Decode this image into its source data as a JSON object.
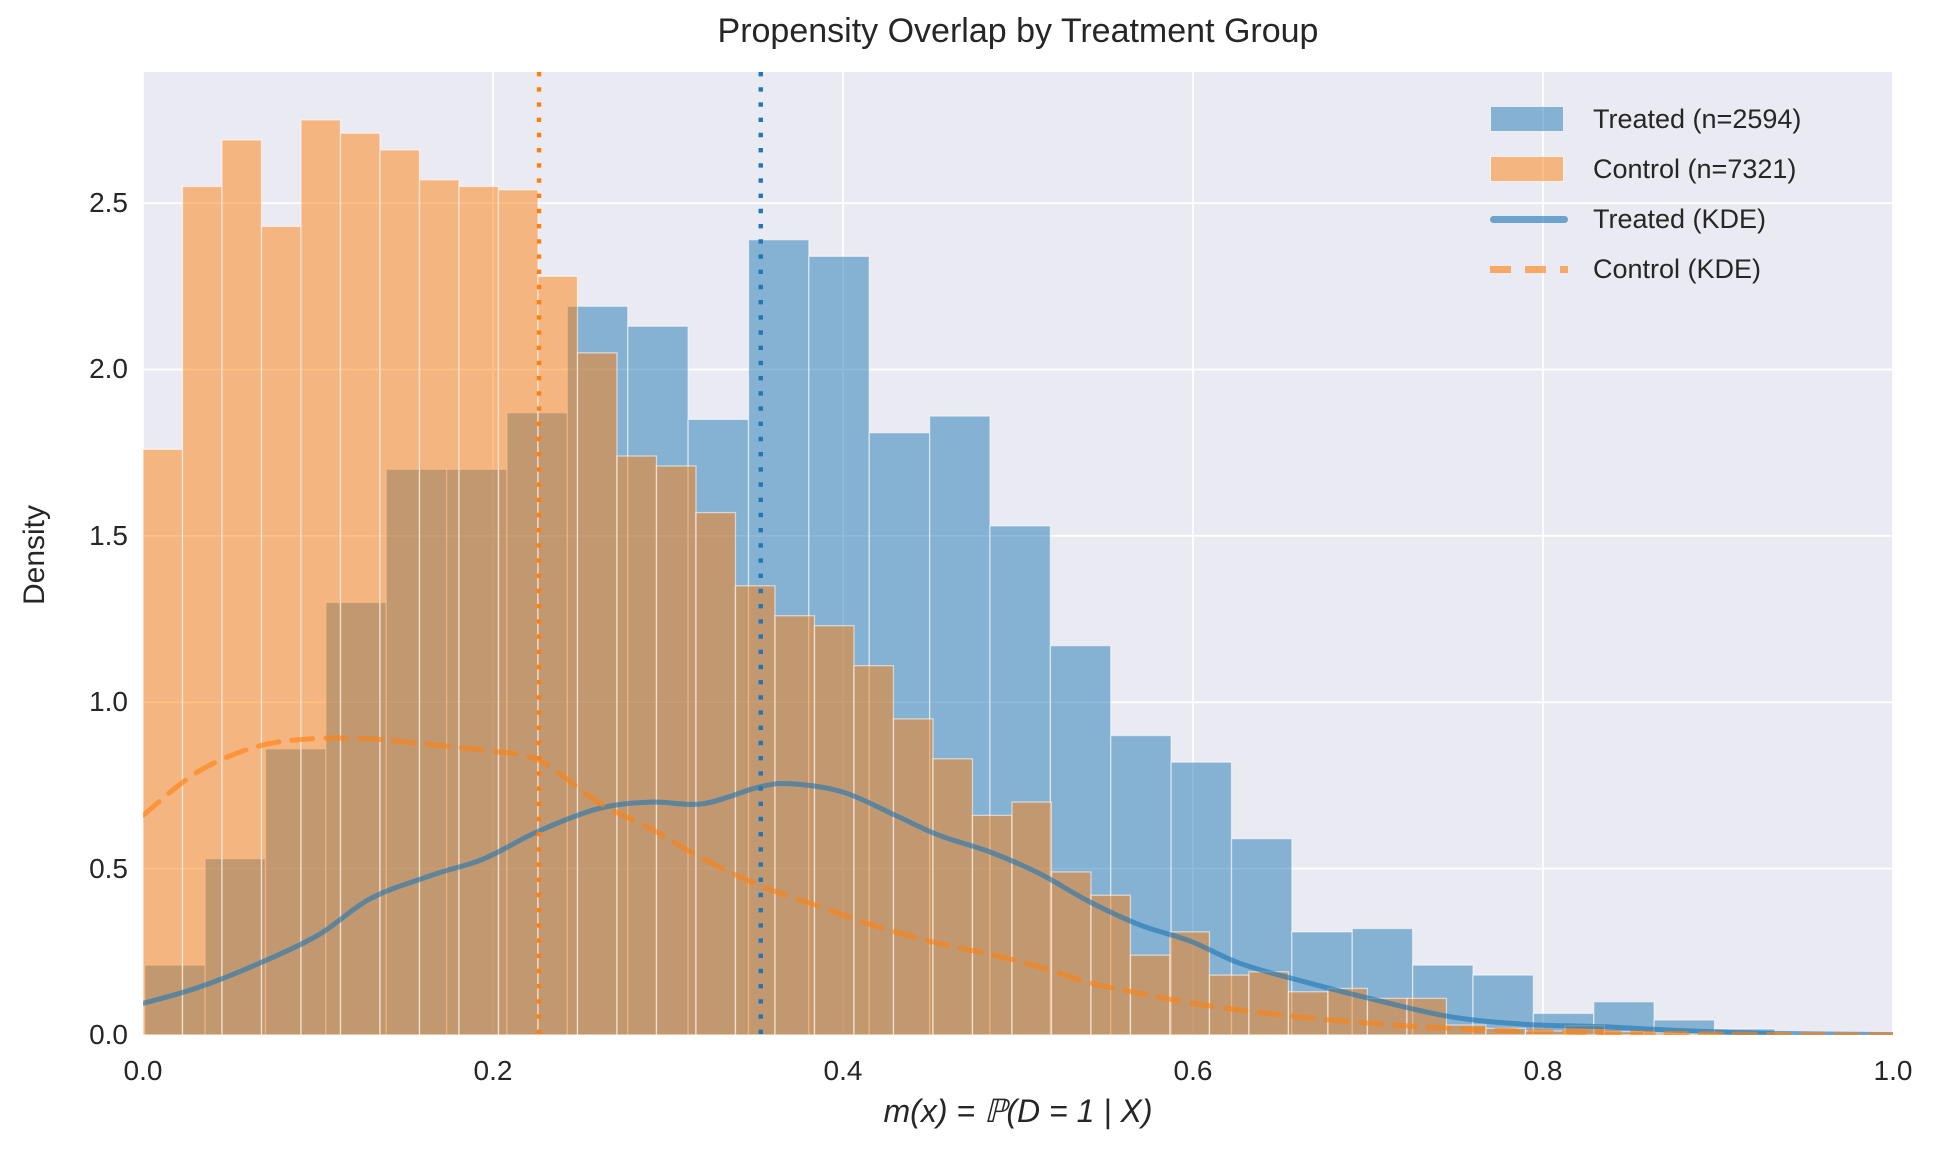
{
  "title": "Propensity Overlap by Treatment Group",
  "xlabel": "m(x) = ℙ(D = 1 | X)",
  "ylabel": "Density",
  "legend": {
    "items": [
      {
        "label": "Treated (n=2594)",
        "type": "patch",
        "color_key": "treated"
      },
      {
        "label": "Control (n=7321)",
        "type": "patch",
        "color_key": "control"
      },
      {
        "label": "Treated (KDE)",
        "type": "line",
        "color_key": "treated"
      },
      {
        "label": "Control (KDE)",
        "type": "dashed-line",
        "color_key": "control"
      }
    ]
  },
  "colors": {
    "treated": "#1f77b4",
    "control": "#ff7f0e",
    "plot_background": "#eaeaf2",
    "grid": "#ffffff",
    "text": "#262626"
  },
  "axes": {
    "x_tick_labels": [
      "0.0",
      "0.2",
      "0.4",
      "0.6",
      "0.8",
      "1.0"
    ],
    "x_tick_values": [
      0,
      0.2,
      0.4,
      0.6,
      0.8,
      1.0
    ],
    "y_tick_labels": [
      "0.0",
      "0.5",
      "1.0",
      "1.5",
      "2.0",
      "2.5"
    ],
    "y_tick_values": [
      0,
      0.5,
      1.0,
      1.5,
      2.0,
      2.5
    ],
    "x_range": [
      0,
      1.0
    ],
    "y_range": [
      0,
      2.894
    ],
    "grid": true
  },
  "chart_data": {
    "type": "histogram+kde",
    "title": "Propensity Overlap by Treatment Group",
    "xlabel": "m(x) = P(D = 1 | X)",
    "ylabel": "Density",
    "legend_position": "upper right",
    "series": [
      {
        "name": "Treated (n=2594)",
        "kind": "histogram",
        "color_key": "treated",
        "bin_start": 0.001,
        "bin_width": 0.0345,
        "densities": [
          0.21,
          0.53,
          0.86,
          1.3,
          1.7,
          1.7,
          1.87,
          2.19,
          2.13,
          1.85,
          2.39,
          2.34,
          1.81,
          1.86,
          1.53,
          1.17,
          0.9,
          0.82,
          0.59,
          0.31,
          0.32,
          0.21,
          0.18,
          0.065,
          0.1,
          0.045,
          0.018
        ]
      },
      {
        "name": "Control (n=7321)",
        "kind": "histogram",
        "color_key": "control",
        "bin_start": 0.0,
        "bin_width": 0.02257,
        "densities": [
          1.76,
          2.55,
          2.69,
          2.43,
          2.75,
          2.71,
          2.66,
          2.57,
          2.55,
          2.54,
          2.28,
          2.05,
          1.74,
          1.71,
          1.57,
          1.35,
          1.26,
          1.23,
          1.11,
          0.95,
          0.83,
          0.66,
          0.7,
          0.49,
          0.42,
          0.24,
          0.31,
          0.18,
          0.19,
          0.13,
          0.14,
          0.11,
          0.11,
          0.03,
          0.02,
          0.012,
          0.028,
          0.01,
          0.006,
          0.004
        ]
      },
      {
        "name": "Treated (KDE)",
        "kind": "kde-line",
        "color_key": "treated",
        "dashed": false,
        "x": [
          0,
          0.03,
          0.064,
          0.1,
          0.13,
          0.165,
          0.195,
          0.225,
          0.26,
          0.29,
          0.32,
          0.352,
          0.37,
          0.4,
          0.43,
          0.455,
          0.484,
          0.512,
          0.541,
          0.57,
          0.598,
          0.627,
          0.66,
          0.7,
          0.747,
          0.79,
          0.833,
          0.88,
          0.93,
          1.0
        ],
        "y": [
          0.095,
          0.14,
          0.21,
          0.3,
          0.41,
          0.48,
          0.53,
          0.61,
          0.68,
          0.7,
          0.695,
          0.745,
          0.755,
          0.73,
          0.66,
          0.6,
          0.55,
          0.486,
          0.4,
          0.33,
          0.283,
          0.215,
          0.165,
          0.111,
          0.055,
          0.032,
          0.025,
          0.013,
          0.005,
          0.001
        ]
      },
      {
        "name": "Control (KDE)",
        "kind": "kde-line",
        "color_key": "control",
        "dashed": true,
        "x": [
          0,
          0.031,
          0.064,
          0.095,
          0.13,
          0.16,
          0.195,
          0.226,
          0.26,
          0.29,
          0.32,
          0.352,
          0.39,
          0.42,
          0.455,
          0.484,
          0.512,
          0.541,
          0.57,
          0.598,
          0.627,
          0.66,
          0.69,
          0.73,
          0.78,
          0.85,
          0.93,
          1.0
        ],
        "y": [
          0.66,
          0.79,
          0.865,
          0.89,
          0.89,
          0.875,
          0.855,
          0.826,
          0.7,
          0.62,
          0.53,
          0.45,
          0.38,
          0.325,
          0.275,
          0.243,
          0.205,
          0.157,
          0.125,
          0.097,
          0.075,
          0.055,
          0.04,
          0.025,
          0.013,
          0.006,
          0.002,
          0.001
        ]
      }
    ],
    "mean_lines": [
      {
        "name": "control-mean-line",
        "x": 0.2263,
        "color_key": "control",
        "style": "dotted"
      },
      {
        "name": "treated-mean-line",
        "x": 0.353,
        "color_key": "treated",
        "style": "dotted"
      }
    ]
  }
}
